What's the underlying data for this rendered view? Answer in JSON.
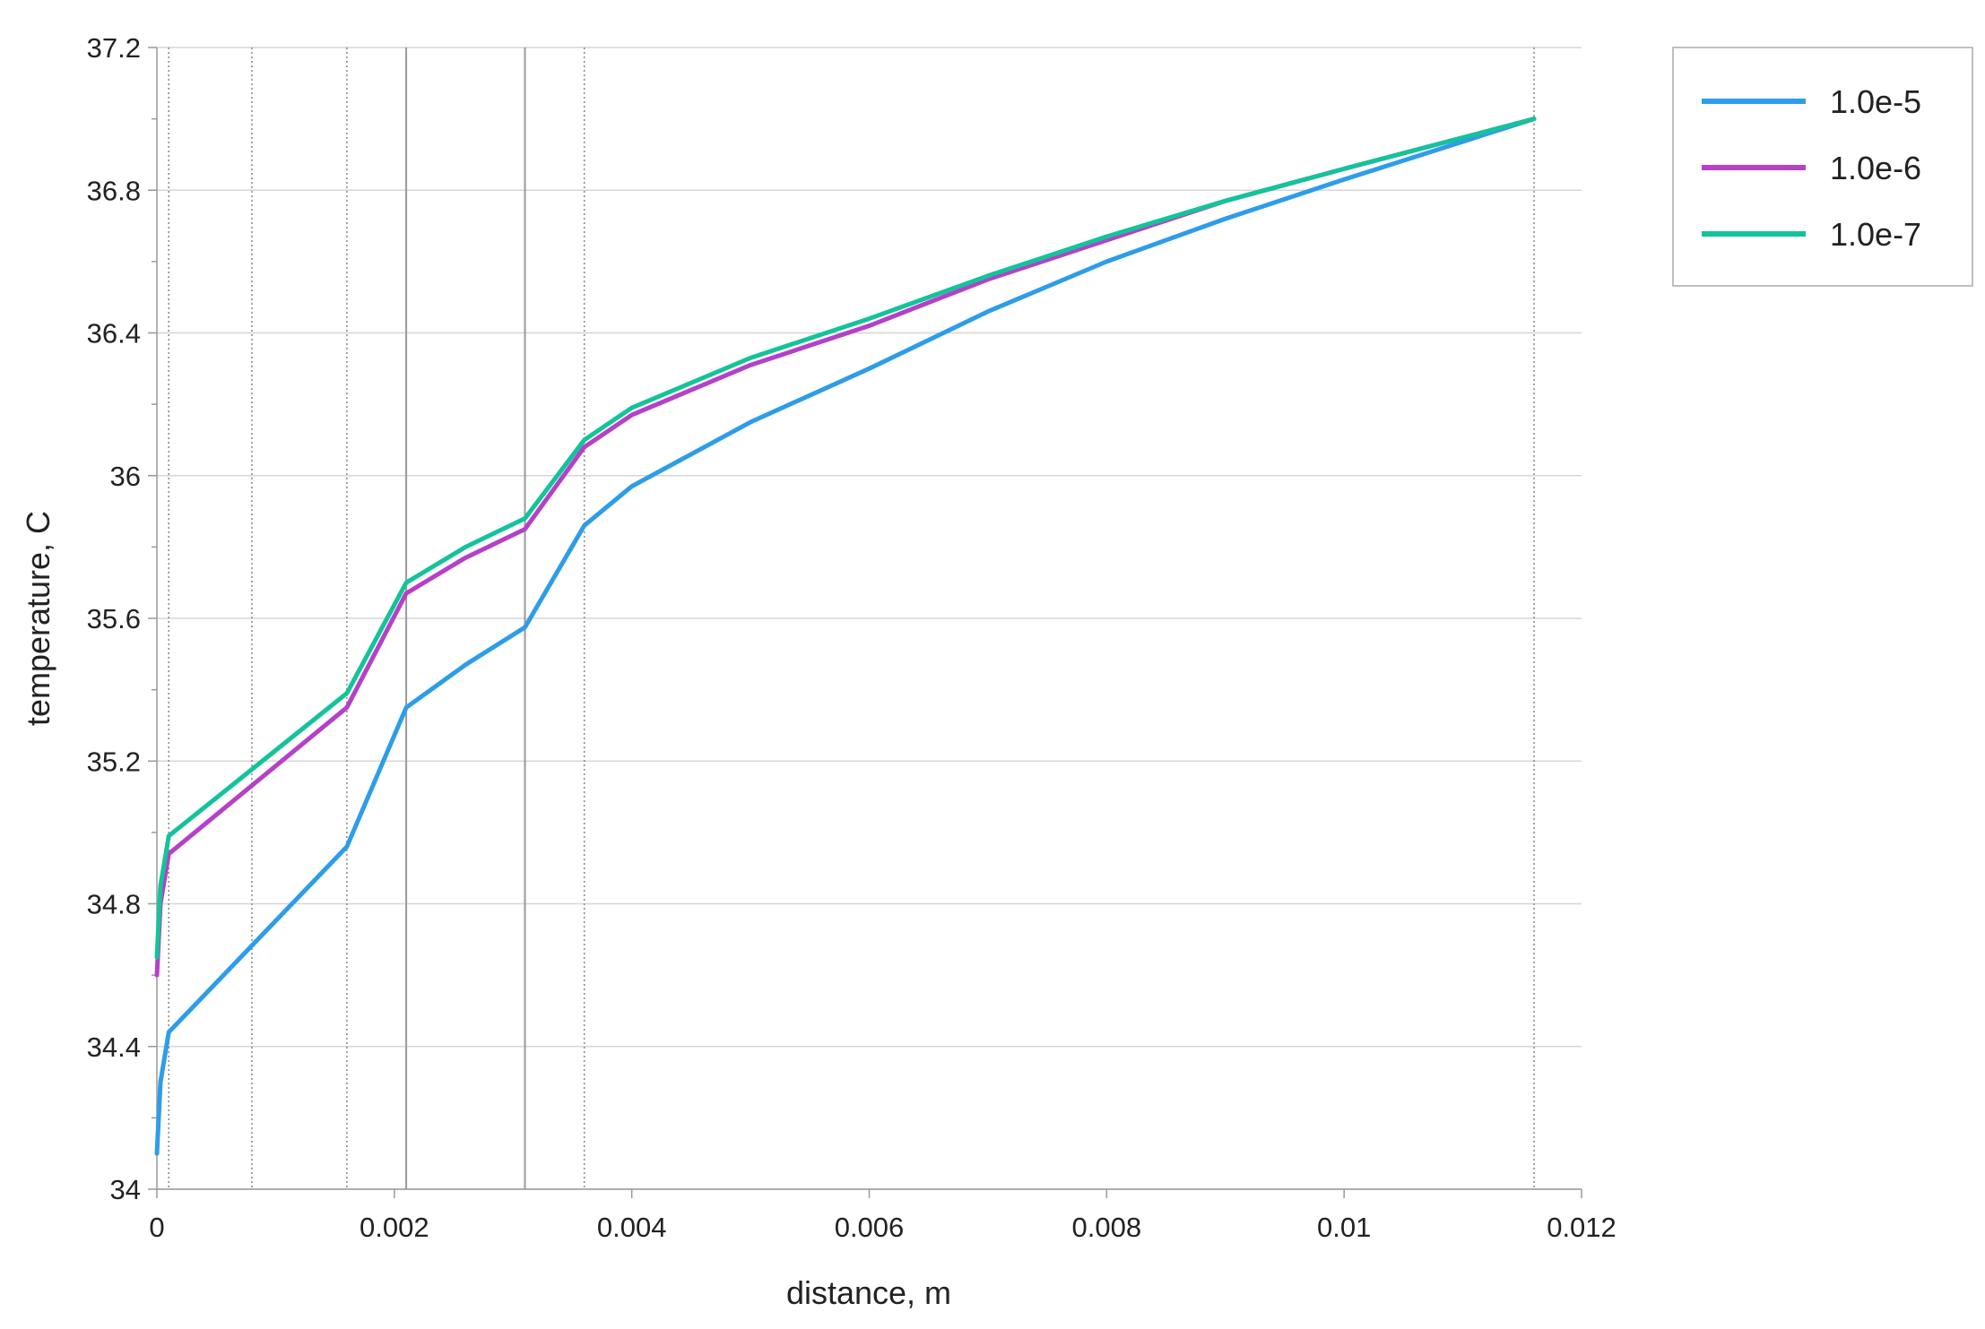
{
  "chart_data": {
    "type": "line",
    "x_label": "distance, m",
    "y_label": "temperature, C",
    "x": [
      0,
      3e-05,
      0.0001,
      0.0016,
      0.0021,
      0.0026,
      0.0031,
      0.0036,
      0.004,
      0.005,
      0.006,
      0.007,
      0.008,
      0.009,
      0.01,
      0.0116
    ],
    "series": [
      {
        "name": "1.0e-5",
        "color": "#2e9de8",
        "values": [
          34.1,
          34.3,
          34.44,
          34.96,
          35.35,
          35.47,
          35.575,
          35.86,
          35.97,
          36.15,
          36.3,
          36.46,
          36.6,
          36.72,
          36.83,
          37.0
        ]
      },
      {
        "name": "1.0e-6",
        "color": "#b441c8",
        "values": [
          34.6,
          34.8,
          34.94,
          35.35,
          35.67,
          35.77,
          35.85,
          36.08,
          36.17,
          36.31,
          36.42,
          36.55,
          36.66,
          36.77,
          36.86,
          37.0
        ]
      },
      {
        "name": "1.0e-7",
        "color": "#14c39a",
        "values": [
          34.65,
          34.85,
          34.99,
          35.39,
          35.7,
          35.8,
          35.88,
          36.1,
          36.19,
          36.33,
          36.44,
          36.56,
          36.67,
          36.77,
          36.86,
          37.0
        ]
      }
    ],
    "xlim": [
      0,
      0.012
    ],
    "xticks": [
      0,
      0.002,
      0.004,
      0.006,
      0.008,
      0.01,
      0.012
    ],
    "ylim": [
      34,
      37.2
    ],
    "yticks": [
      34,
      34.4,
      34.8,
      35.2,
      35.6,
      36,
      36.4,
      36.8,
      37.2
    ],
    "yminorticks": [
      34.2,
      34.6,
      35.0,
      35.4,
      35.8,
      36.2,
      36.6,
      37.0
    ],
    "vlines": [
      {
        "x": 0.0001,
        "style": "dotted"
      },
      {
        "x": 0.0008,
        "style": "dotted"
      },
      {
        "x": 0.0016,
        "style": "dotted"
      },
      {
        "x": 0.0021,
        "style": "solid"
      },
      {
        "x": 0.0031,
        "style": "solid"
      },
      {
        "x": 0.0036,
        "style": "dotted"
      },
      {
        "x": 0.0116,
        "style": "dotted"
      }
    ],
    "grid": true,
    "legend": "top-right"
  }
}
